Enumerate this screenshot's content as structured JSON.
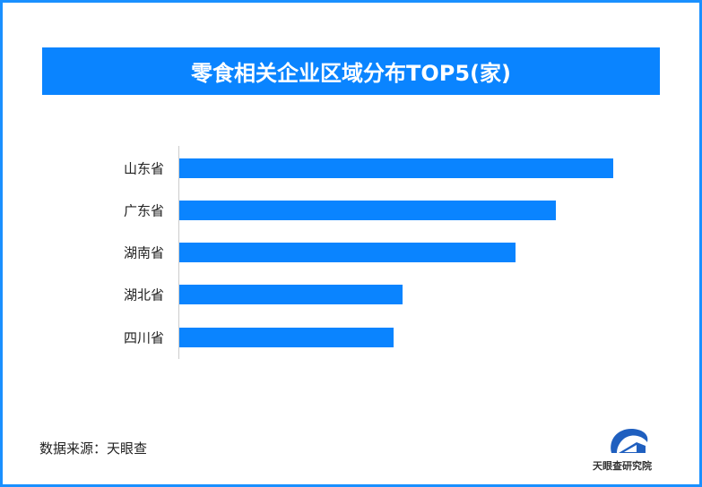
{
  "chart_data": {
    "type": "bar",
    "orientation": "horizontal",
    "title": "零食相关企业区域分布TOP5(家)",
    "categories": [
      "山东省",
      "广东省",
      "湖南省",
      "湖北省",
      "四川省"
    ],
    "values": [
      1.0,
      0.868,
      0.775,
      0.514,
      0.494
    ],
    "value_note": "relative bar length; no axis or value labels printed",
    "xlim": [
      0,
      1
    ],
    "grid": false,
    "bar_color": "#0a84ff"
  },
  "footer": {
    "source": "数据来源：天眼查",
    "logo_text": "天眼查研究院"
  },
  "colors": {
    "frame": "#1a90ff",
    "title_bg": "#0a84ff"
  }
}
